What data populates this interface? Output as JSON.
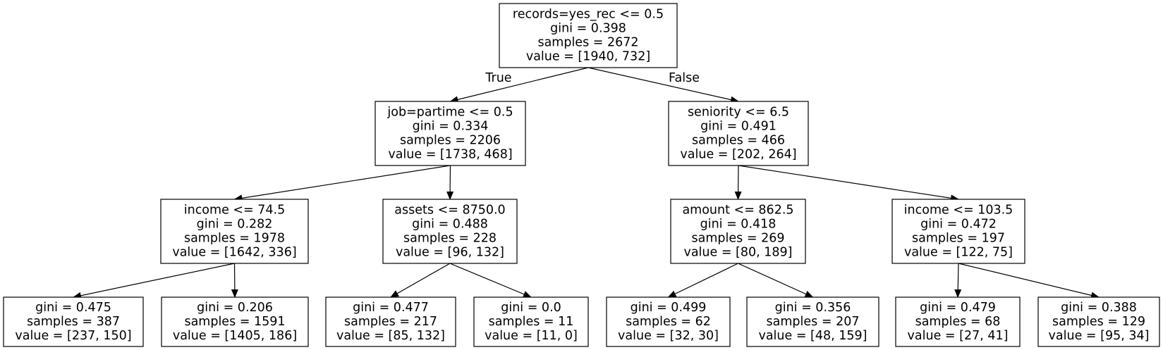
{
  "tree": {
    "nodes": [
      {
        "id": "n0",
        "lines": [
          "records=yes_rec <= 0.5",
          "gini = 0.398",
          "samples = 2672",
          "value = [1940, 732]"
        ]
      },
      {
        "id": "n1",
        "lines": [
          "job=partime <= 0.5",
          "gini = 0.334",
          "samples = 2206",
          "value = [1738, 468]"
        ]
      },
      {
        "id": "n2",
        "lines": [
          "seniority <= 6.5",
          "gini = 0.491",
          "samples = 466",
          "value = [202, 264]"
        ]
      },
      {
        "id": "n3",
        "lines": [
          "income <= 74.5",
          "gini = 0.282",
          "samples = 1978",
          "value = [1642, 336]"
        ]
      },
      {
        "id": "n4",
        "lines": [
          "assets <= 8750.0",
          "gini = 0.488",
          "samples = 228",
          "value = [96, 132]"
        ]
      },
      {
        "id": "n5",
        "lines": [
          "amount <= 862.5",
          "gini = 0.418",
          "samples = 269",
          "value = [80, 189]"
        ]
      },
      {
        "id": "n6",
        "lines": [
          "income <= 103.5",
          "gini = 0.472",
          "samples = 197",
          "value = [122, 75]"
        ]
      },
      {
        "id": "n7",
        "lines": [
          "gini = 0.475",
          "samples = 387",
          "value = [237, 150]"
        ]
      },
      {
        "id": "n8",
        "lines": [
          "gini = 0.206",
          "samples = 1591",
          "value = [1405, 186]"
        ]
      },
      {
        "id": "n9",
        "lines": [
          "gini = 0.477",
          "samples = 217",
          "value = [85, 132]"
        ]
      },
      {
        "id": "n10",
        "lines": [
          "gini = 0.0",
          "samples = 11",
          "value = [11, 0]"
        ]
      },
      {
        "id": "n11",
        "lines": [
          "gini = 0.499",
          "samples = 62",
          "value = [32, 30]"
        ]
      },
      {
        "id": "n12",
        "lines": [
          "gini = 0.356",
          "samples = 207",
          "value = [48, 159]"
        ]
      },
      {
        "id": "n13",
        "lines": [
          "gini = 0.479",
          "samples = 68",
          "value = [27, 41]"
        ]
      },
      {
        "id": "n14",
        "lines": [
          "gini = 0.388",
          "samples = 129",
          "value = [95, 34]"
        ]
      }
    ],
    "edges": [
      {
        "from": "n0",
        "to": "n1",
        "label": "True"
      },
      {
        "from": "n0",
        "to": "n2",
        "label": "False"
      },
      {
        "from": "n1",
        "to": "n3",
        "label": ""
      },
      {
        "from": "n1",
        "to": "n4",
        "label": ""
      },
      {
        "from": "n2",
        "to": "n5",
        "label": ""
      },
      {
        "from": "n2",
        "to": "n6",
        "label": ""
      },
      {
        "from": "n3",
        "to": "n7",
        "label": ""
      },
      {
        "from": "n3",
        "to": "n8",
        "label": ""
      },
      {
        "from": "n4",
        "to": "n9",
        "label": ""
      },
      {
        "from": "n4",
        "to": "n10",
        "label": ""
      },
      {
        "from": "n5",
        "to": "n11",
        "label": ""
      },
      {
        "from": "n5",
        "to": "n12",
        "label": ""
      },
      {
        "from": "n6",
        "to": "n13",
        "label": ""
      },
      {
        "from": "n6",
        "to": "n14",
        "label": ""
      }
    ]
  }
}
